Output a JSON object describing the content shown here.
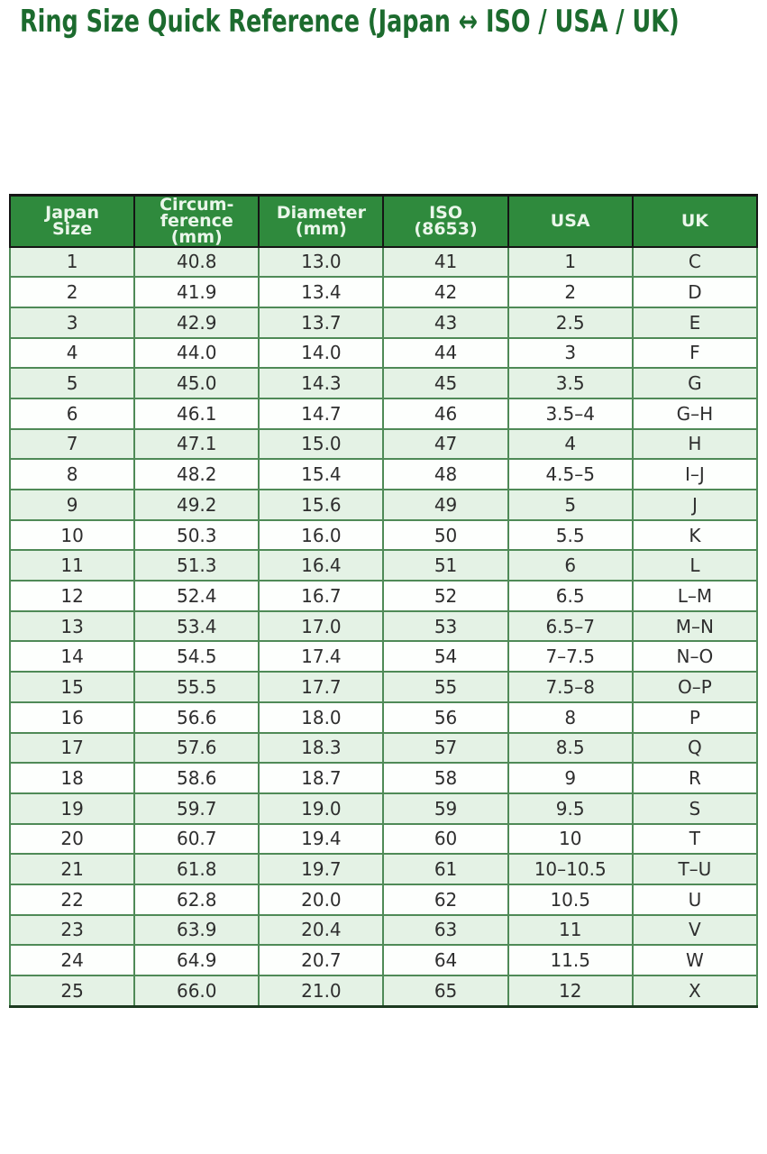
{
  "page": {
    "title": "Ring Size Quick Reference (Japan ↔ ISO / USA / UK)"
  },
  "colors": {
    "title_green": "#1c6b2e",
    "header_bg": "#2f8a3d",
    "header_text": "#eaf6ea",
    "header_border": "#151515",
    "grid_green": "#4f8a57",
    "row_alt_green": "#e4f2e5",
    "row_white": "#fdfffd",
    "cell_text": "#2e2e2e",
    "bottom_border": "#1c3a20"
  },
  "table": {
    "headers": [
      "Japan\nSize",
      "Circum-\nference\n(mm)",
      "Diameter\n(mm)",
      "ISO\n(8653)",
      "USA",
      "UK"
    ],
    "column_keys": [
      "japan-size",
      "circumference-mm",
      "diameter-mm",
      "iso-8653",
      "usa",
      "uk"
    ]
  },
  "chart_data": {
    "type": "table",
    "title": "Ring Size Quick Reference (Japan ↔ ISO / USA / UK)",
    "columns": [
      "Japan Size",
      "Circumference (mm)",
      "Diameter (mm)",
      "ISO (8653)",
      "USA",
      "UK"
    ],
    "rows": [
      [
        "1",
        "40.8",
        "13.0",
        "41",
        "1",
        "C"
      ],
      [
        "2",
        "41.9",
        "13.4",
        "42",
        "2",
        "D"
      ],
      [
        "3",
        "42.9",
        "13.7",
        "43",
        "2.5",
        "E"
      ],
      [
        "4",
        "44.0",
        "14.0",
        "44",
        "3",
        "F"
      ],
      [
        "5",
        "45.0",
        "14.3",
        "45",
        "3.5",
        "G"
      ],
      [
        "6",
        "46.1",
        "14.7",
        "46",
        "3.5–4",
        "G–H"
      ],
      [
        "7",
        "47.1",
        "15.0",
        "47",
        "4",
        "H"
      ],
      [
        "8",
        "48.2",
        "15.4",
        "48",
        "4.5–5",
        "I–J"
      ],
      [
        "9",
        "49.2",
        "15.6",
        "49",
        "5",
        "J"
      ],
      [
        "10",
        "50.3",
        "16.0",
        "50",
        "5.5",
        "K"
      ],
      [
        "11",
        "51.3",
        "16.4",
        "51",
        "6",
        "L"
      ],
      [
        "12",
        "52.4",
        "16.7",
        "52",
        "6.5",
        "L–M"
      ],
      [
        "13",
        "53.4",
        "17.0",
        "53",
        "6.5–7",
        "M–N"
      ],
      [
        "14",
        "54.5",
        "17.4",
        "54",
        "7–7.5",
        "N–O"
      ],
      [
        "15",
        "55.5",
        "17.7",
        "55",
        "7.5–8",
        "O–P"
      ],
      [
        "16",
        "56.6",
        "18.0",
        "56",
        "8",
        "P"
      ],
      [
        "17",
        "57.6",
        "18.3",
        "57",
        "8.5",
        "Q"
      ],
      [
        "18",
        "58.6",
        "18.7",
        "58",
        "9",
        "R"
      ],
      [
        "19",
        "59.7",
        "19.0",
        "59",
        "9.5",
        "S"
      ],
      [
        "20",
        "60.7",
        "19.4",
        "60",
        "10",
        "T"
      ],
      [
        "21",
        "61.8",
        "19.7",
        "61",
        "10–10.5",
        "T–U"
      ],
      [
        "22",
        "62.8",
        "20.0",
        "62",
        "10.5",
        "U"
      ],
      [
        "23",
        "63.9",
        "20.4",
        "63",
        "11",
        "V"
      ],
      [
        "24",
        "64.9",
        "20.7",
        "64",
        "11.5",
        "W"
      ],
      [
        "25",
        "66.0",
        "21.0",
        "65",
        "12",
        "X"
      ]
    ],
    "layout": {
      "grid": true,
      "header_fill": "#2f8a3d",
      "alternating_row_fill": [
        "#e4f2e5",
        "#fdfffd"
      ]
    }
  }
}
